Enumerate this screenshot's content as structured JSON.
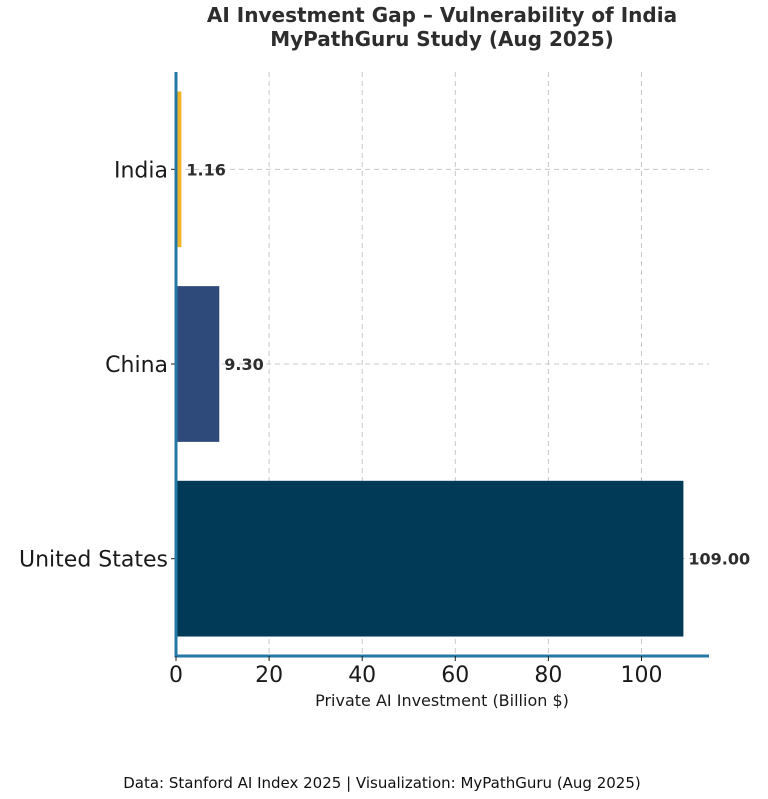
{
  "chart_data": {
    "type": "bar",
    "orientation": "horizontal",
    "title": "AI Investment Gap – Vulnerability of India",
    "subtitle": "MyPathGuru Study (Aug 2025)",
    "categories": [
      "United States",
      "China",
      "India"
    ],
    "values": [
      109.0,
      9.3,
      1.16
    ],
    "value_labels": [
      "109.00",
      "9.30",
      "1.16"
    ],
    "colors": [
      "#003a57",
      "#2e4a7a",
      "#f0b429"
    ],
    "xlabel": "Private AI Investment (Billion $)",
    "ylabel": "",
    "xlim": [
      0,
      114.5
    ],
    "xticks": [
      0,
      20,
      40,
      60,
      80,
      100
    ],
    "grid": true,
    "axis_color": "#2478a8"
  },
  "footer": {
    "source": "Data: Stanford AI Index 2025 | Visualization: MyPathGuru (Aug 2025)"
  }
}
